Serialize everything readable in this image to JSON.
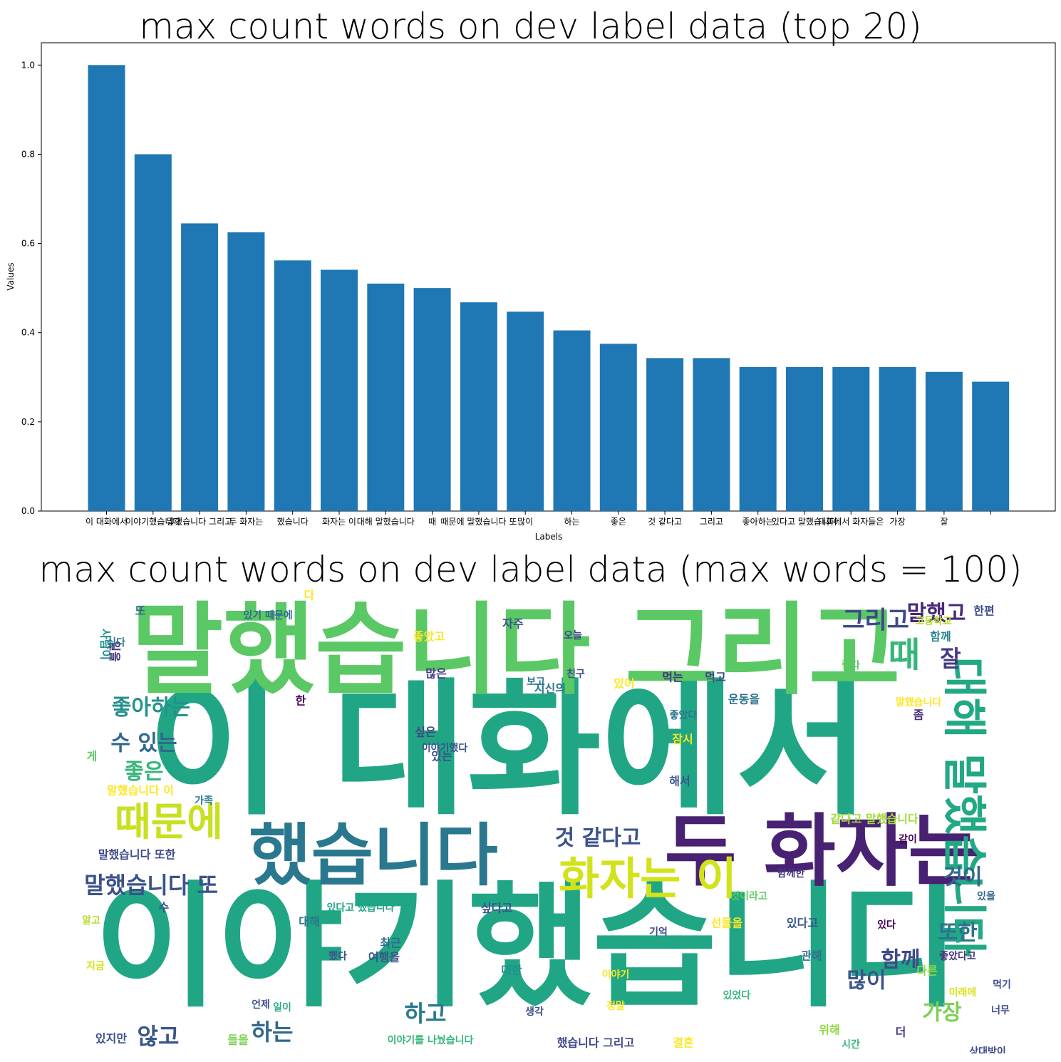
{
  "chart_data": [
    {
      "type": "bar",
      "title": "max count words on dev label data (top 20)",
      "xlabel": "Labels",
      "ylabel": "Values",
      "ylim": [
        0,
        1.05
      ],
      "yticks": [
        "0.0",
        "0.2",
        "0.4",
        "0.6",
        "0.8",
        "1.0"
      ],
      "bar_color": "#1f77b4",
      "categories": [
        "이 대화에서",
        "이야기했습니다",
        "말했습니다 그리고",
        "두 화자는",
        "했습니다",
        "화자는 이",
        "대해 말했습니다",
        "때",
        "때문에 말했습니다 또",
        "많이",
        "하는",
        "좋은",
        "것 같다고",
        "그리고",
        "좋아하는",
        "있다고 말했습니다",
        "대화에서 화자들은",
        "가장",
        "잘",
        ""
      ],
      "values": [
        1.0,
        0.8,
        0.645,
        0.625,
        0.562,
        0.541,
        0.51,
        0.5,
        0.468,
        0.447,
        0.405,
        0.375,
        0.343,
        0.343,
        0.323,
        0.323,
        0.323,
        0.323,
        0.312,
        0.29
      ]
    },
    {
      "type": "wordcloud",
      "title": "max count words on dev label data (max words = 100)",
      "words": [
        {
          "text": "이 대화에서",
          "weight": 100,
          "color": "#21a685"
        },
        {
          "text": "이야기했습니다",
          "weight": 95,
          "color": "#21a685"
        },
        {
          "text": "말했습니다 그리고",
          "weight": 70,
          "color": "#5ac864"
        },
        {
          "text": "두 화자는",
          "weight": 55,
          "color": "#482173"
        },
        {
          "text": "했습니다",
          "weight": 50,
          "color": "#2a788e"
        },
        {
          "text": "화자는 이",
          "weight": 34,
          "color": "#d2e21b"
        },
        {
          "text": "대해 말했습니다",
          "weight": 32,
          "color": "#22a884"
        },
        {
          "text": "때문에",
          "weight": 30,
          "color": "#c8e020"
        },
        {
          "text": "말했습니다 또",
          "weight": 22,
          "color": "#3b528b"
        },
        {
          "text": "때",
          "weight": 26,
          "color": "#35b779"
        },
        {
          "text": "그리고",
          "weight": 20,
          "color": "#3e4989"
        },
        {
          "text": "말했고",
          "weight": 18,
          "color": "#482878"
        },
        {
          "text": "좋아하는",
          "weight": 19,
          "color": "#21918c"
        },
        {
          "text": "수 있는",
          "weight": 18,
          "color": "#31688e"
        },
        {
          "text": "좋은",
          "weight": 19,
          "color": "#35b779"
        },
        {
          "text": "것 같다고",
          "weight": 18,
          "color": "#3b528b"
        },
        {
          "text": "잘",
          "weight": 18,
          "color": "#443983"
        },
        {
          "text": "것이",
          "weight": 16,
          "color": "#31688e"
        },
        {
          "text": "또한",
          "weight": 16,
          "color": "#2c728e"
        },
        {
          "text": "함께",
          "weight": 16,
          "color": "#3e4989"
        },
        {
          "text": "가장",
          "weight": 18,
          "color": "#7ad151"
        },
        {
          "text": "많이",
          "weight": 18,
          "color": "#3b528b"
        },
        {
          "text": "하고",
          "weight": 16,
          "color": "#2a788e"
        },
        {
          "text": "하는",
          "weight": 16,
          "color": "#31688e"
        },
        {
          "text": "않고",
          "weight": 16,
          "color": "#39568c"
        },
        {
          "text": "자주",
          "weight": 9,
          "color": "#3b528b"
        },
        {
          "text": "많은",
          "weight": 9,
          "color": "#443983"
        },
        {
          "text": "먹는",
          "weight": 9,
          "color": "#46337e"
        },
        {
          "text": "먹고",
          "weight": 9,
          "color": "#3e4989"
        },
        {
          "text": "있어",
          "weight": 9,
          "color": "#fde725"
        },
        {
          "text": "한",
          "weight": 9,
          "color": "#440154"
        },
        {
          "text": "해서",
          "weight": 9,
          "color": "#3b528b"
        },
        {
          "text": "말했습니다 또한",
          "weight": 9,
          "color": "#3e4989"
        },
        {
          "text": "말했습니다 이",
          "weight": 9,
          "color": "#fde725"
        },
        {
          "text": "같다고 말했습니다",
          "weight": 9,
          "color": "#a0da39"
        },
        {
          "text": "있다고 했습니다",
          "weight": 8,
          "color": "#20a386"
        },
        {
          "text": "싶다고",
          "weight": 9,
          "color": "#3b528b"
        },
        {
          "text": "선물을",
          "weight": 9,
          "color": "#fde725"
        },
        {
          "text": "있다고",
          "weight": 9,
          "color": "#3b528b"
        },
        {
          "text": "여행을",
          "weight": 9,
          "color": "#3b528b"
        },
        {
          "text": "최근",
          "weight": 9,
          "color": "#31688e"
        },
        {
          "text": "대한",
          "weight": 9,
          "color": "#21918c"
        },
        {
          "text": "관해",
          "weight": 9,
          "color": "#2c728e"
        },
        {
          "text": "다른",
          "weight": 9,
          "color": "#90d743"
        },
        {
          "text": "있지만",
          "weight": 9,
          "color": "#3b528b"
        },
        {
          "text": "들을",
          "weight": 9,
          "color": "#7ad151"
        },
        {
          "text": "결혼",
          "weight": 9,
          "color": "#fde725"
        },
        {
          "text": "이야기를 나눴습니다",
          "weight": 8,
          "color": "#35b779"
        },
        {
          "text": "했습니다 그리고",
          "weight": 9,
          "color": "#3e4989"
        },
        {
          "text": "위해",
          "weight": 9,
          "color": "#90d743"
        },
        {
          "text": "더",
          "weight": 9,
          "color": "#443983"
        },
        {
          "text": "잠시",
          "weight": 9,
          "color": "#fde725"
        },
        {
          "text": "수",
          "weight": 9,
          "color": "#3b528b"
        },
        {
          "text": "게",
          "weight": 9,
          "color": "#5ec962"
        },
        {
          "text": "싶은",
          "weight": 9,
          "color": "#3e4989"
        },
        {
          "text": "있는",
          "weight": 9,
          "color": "#3b528b"
        },
        {
          "text": "운동을",
          "weight": 9,
          "color": "#2c728e"
        },
        {
          "text": "좀",
          "weight": 9,
          "color": "#46337e"
        },
        {
          "text": "지신의",
          "weight": 9,
          "color": "#2c728e"
        },
        {
          "text": "함께",
          "weight": 9,
          "color": "#26828e"
        },
        {
          "text": "한편",
          "weight": 9,
          "color": "#3e4989"
        },
        {
          "text": "있기 때문에",
          "weight": 8,
          "color": "#31688e"
        },
        {
          "text": "고등학교",
          "weight": 8,
          "color": "#b5de2b"
        },
        {
          "text": "좋았고",
          "weight": 9,
          "color": "#fde725"
        },
        {
          "text": "것이라고",
          "weight": 8,
          "color": "#5ec962"
        },
        {
          "text": "미래에",
          "weight": 8,
          "color": "#d8e219"
        },
        {
          "text": "상대방이",
          "weight": 8,
          "color": "#3e4989"
        },
        {
          "text": "이야기했다",
          "weight": 8,
          "color": "#3b528b"
        },
        {
          "text": "말했습니다",
          "weight": 8,
          "color": "#fde725"
        },
        {
          "text": "좋았다",
          "weight": 8,
          "color": "#2a788e"
        },
        {
          "text": "또",
          "weight": 9,
          "color": "#31688e"
        },
        {
          "text": "다",
          "weight": 9,
          "color": "#fde725"
        },
        {
          "text": "사람이",
          "weight": 9,
          "color": "#21918c"
        },
        {
          "text": "일을",
          "weight": 8,
          "color": "#46337e"
        },
        {
          "text": "대해",
          "weight": 9,
          "color": "#2a788e"
        },
        {
          "text": "싶다",
          "weight": 8,
          "color": "#2c728e"
        },
        {
          "text": "있었다",
          "weight": 8,
          "color": "#35b779"
        },
        {
          "text": "언제",
          "weight": 8,
          "color": "#3b528b"
        },
        {
          "text": "오늘",
          "weight": 8,
          "color": "#3e4989"
        },
        {
          "text": "보고",
          "weight": 8,
          "color": "#2c728e"
        },
        {
          "text": "정말",
          "weight": 8,
          "color": "#fde725"
        },
        {
          "text": "있다",
          "weight": 8,
          "color": "#440154"
        },
        {
          "text": "그",
          "weight": 8,
          "color": "#1fa187"
        },
        {
          "text": "먹기",
          "weight": 8,
          "color": "#3b528b"
        },
        {
          "text": "좋았다고",
          "weight": 8,
          "color": "#46337e"
        },
        {
          "text": "알고",
          "weight": 8,
          "color": "#b5de2b"
        },
        {
          "text": "일이",
          "weight": 8,
          "color": "#27ad81"
        },
        {
          "text": "했다",
          "weight": 8,
          "color": "#3b528b"
        },
        {
          "text": "좋다",
          "weight": 8,
          "color": "#5ec962"
        },
        {
          "text": "너무",
          "weight": 8,
          "color": "#3e4989"
        },
        {
          "text": "같이",
          "weight": 8,
          "color": "#440154"
        },
        {
          "text": "있을",
          "weight": 8,
          "color": "#31688e"
        },
        {
          "text": "지금",
          "weight": 8,
          "color": "#d8e219"
        },
        {
          "text": "가족",
          "weight": 8,
          "color": "#2a788e"
        },
        {
          "text": "친구",
          "weight": 8,
          "color": "#3b528b"
        },
        {
          "text": "시간",
          "weight": 8,
          "color": "#35b779"
        },
        {
          "text": "함께한",
          "weight": 8,
          "color": "#46337e"
        },
        {
          "text": "기억",
          "weight": 8,
          "color": "#3e4989"
        },
        {
          "text": "이야기",
          "weight": 8,
          "color": "#fde725"
        },
        {
          "text": "생각",
          "weight": 8,
          "color": "#3b528b"
        }
      ]
    }
  ]
}
